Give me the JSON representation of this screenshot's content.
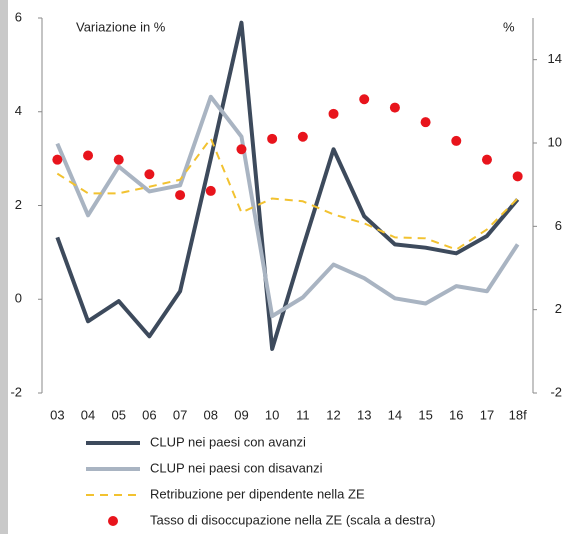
{
  "chart_data": {
    "type": "line",
    "left_label": "Variazione in %",
    "right_label": "%",
    "categories": [
      "03",
      "04",
      "05",
      "06",
      "07",
      "08",
      "09",
      "10",
      "11",
      "12",
      "13",
      "14",
      "15",
      "16",
      "17",
      "18f"
    ],
    "ylim": [
      -2,
      6
    ],
    "yticks": [
      -2,
      0,
      2,
      4,
      6
    ],
    "y2lim": [
      -2,
      16
    ],
    "y2ticks": [
      -2,
      2,
      6,
      10,
      14
    ],
    "series": [
      {
        "name": "CLUP nei paesi con avanzi",
        "color": "#3d4a5c",
        "style": "solid",
        "values": [
          1.32,
          -0.47,
          -0.04,
          -0.79,
          0.17,
          3.0,
          5.9,
          -1.06,
          1.1,
          3.2,
          1.77,
          1.17,
          1.1,
          0.98,
          1.35,
          2.13
        ]
      },
      {
        "name": "CLUP nei paesi con disavanzi",
        "color": "#a9b4c2",
        "style": "solid",
        "values": [
          3.32,
          1.79,
          2.83,
          2.3,
          2.43,
          4.32,
          3.47,
          -0.36,
          0.04,
          0.74,
          0.45,
          0.02,
          -0.09,
          0.28,
          0.17,
          1.17
        ]
      },
      {
        "name": "Retribuzione per dipendente nella ZE",
        "color": "#f2c230",
        "style": "dashed",
        "values": [
          2.68,
          2.26,
          2.26,
          2.4,
          2.55,
          3.43,
          1.85,
          2.15,
          2.09,
          1.81,
          1.62,
          1.32,
          1.3,
          1.06,
          1.49,
          2.15
        ]
      },
      {
        "name": "Tasso di disoccupazione nella ZE (scala a destra)",
        "color": "#e8141c",
        "style": "dots",
        "axis": "y2",
        "values": [
          9.2,
          9.4,
          9.2,
          8.5,
          7.5,
          7.7,
          9.7,
          10.2,
          10.3,
          11.4,
          12.1,
          11.7,
          11.0,
          10.1,
          9.2,
          8.4
        ]
      }
    ]
  }
}
